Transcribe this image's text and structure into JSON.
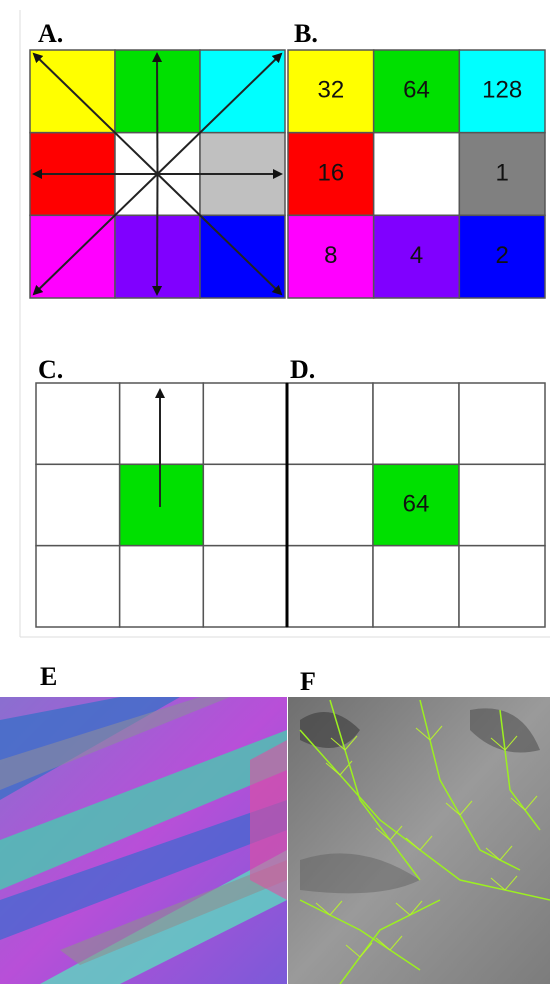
{
  "panels": {
    "a": {
      "label": "A."
    },
    "b": {
      "label": "B.",
      "codes": [
        32,
        64,
        128,
        16,
        1,
        8,
        4,
        2
      ]
    },
    "c": {
      "label": "C."
    },
    "d": {
      "label": "D.",
      "code": 64
    },
    "e": {
      "label": "E"
    },
    "f": {
      "label": "F"
    }
  }
}
